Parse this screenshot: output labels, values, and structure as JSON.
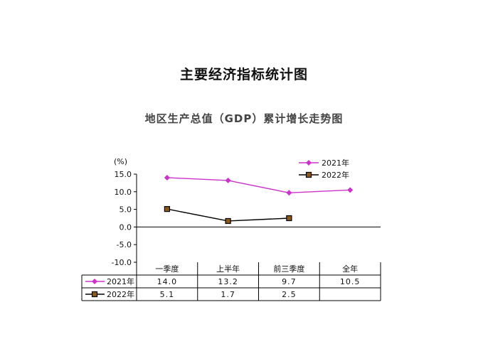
{
  "page": {
    "title": "主要经济指标统计图"
  },
  "chart_data": {
    "type": "line",
    "title": "地区生产总值（GDP）累计增长走势图",
    "ylabel": "(%)",
    "xlabel": "",
    "ylim": [
      -10,
      15
    ],
    "y_ticks": [
      "15.0",
      "10.0",
      "5.0",
      "0.0",
      "-5.0",
      "-10.0"
    ],
    "y_tick_values": [
      15,
      10,
      5,
      0,
      -5,
      -10
    ],
    "categories": [
      "一季度",
      "上半年",
      "前三季度",
      "全年"
    ],
    "series": [
      {
        "name": "2021年",
        "values": [
          14.0,
          13.2,
          9.7,
          10.5
        ],
        "labels": [
          "14.0",
          "13.2",
          "9.7",
          "10.5"
        ],
        "color": "#cc33cc",
        "marker": "diamond"
      },
      {
        "name": "2022年",
        "values": [
          5.1,
          1.7,
          2.5,
          null
        ],
        "labels": [
          "5.1",
          "1.7",
          "2.5",
          ""
        ],
        "color": "#000000",
        "marker": "square"
      }
    ],
    "legend": "top-right",
    "grid": false,
    "data_table": true
  }
}
